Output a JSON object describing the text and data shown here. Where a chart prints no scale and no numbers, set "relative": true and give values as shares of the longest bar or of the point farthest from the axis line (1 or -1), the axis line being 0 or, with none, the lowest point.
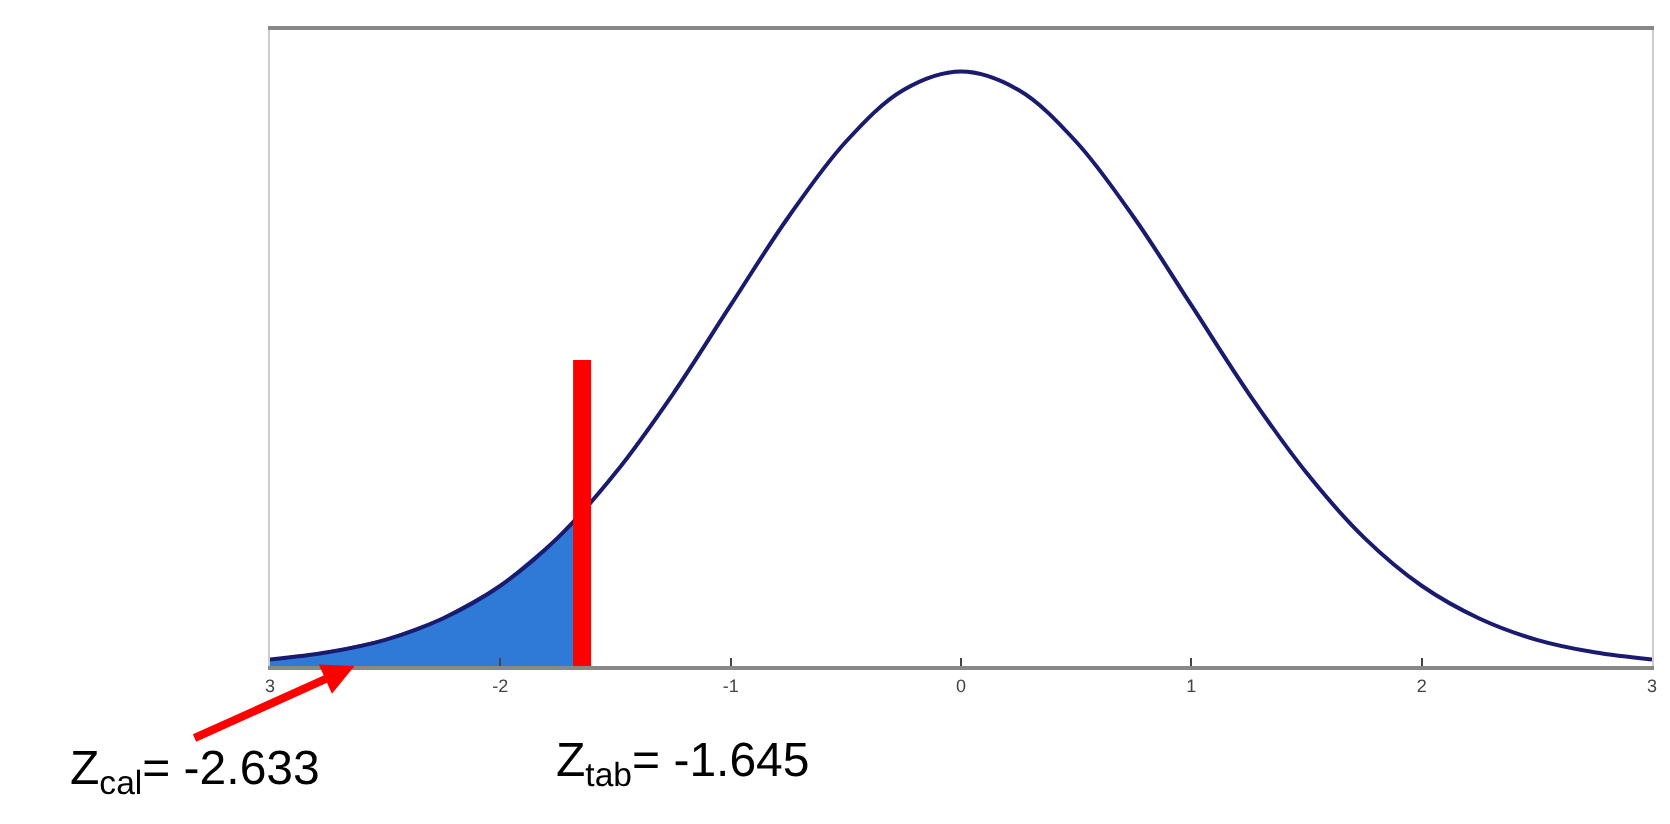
{
  "chart_data": {
    "type": "line",
    "relative": true,
    "marker": "none",
    "xlim": [
      -3,
      3
    ],
    "xticks": [
      {
        "value": -3,
        "label": "3"
      },
      -2,
      -1,
      0,
      1,
      2,
      3
    ],
    "series": [
      {
        "type": "area",
        "color": "#2f7ad6",
        "x": [
          -3,
          -2.75,
          -2.5,
          -2.25,
          -2,
          -1.75,
          -1.645
        ],
        "values": [
          0.011,
          0.023,
          0.044,
          0.08,
          0.135,
          0.216,
          0.258
        ]
      },
      {
        "color": "#1a1a6e",
        "x": [
          -3,
          -2.75,
          -2.5,
          -2.25,
          -2,
          -1.75,
          -1.5,
          -1.25,
          -1,
          -0.75,
          -0.5,
          -0.25,
          0,
          0.25,
          0.5,
          0.75,
          1,
          1.25,
          1.5,
          1.75,
          2,
          2.25,
          2.5,
          2.75,
          3
        ],
        "values": [
          0.011,
          0.023,
          0.044,
          0.08,
          0.135,
          0.216,
          0.325,
          0.458,
          0.607,
          0.755,
          0.882,
          0.969,
          1,
          0.969,
          0.882,
          0.755,
          0.607,
          0.458,
          0.325,
          0.216,
          0.135,
          0.08,
          0.044,
          0.023,
          0.011
        ]
      },
      {
        "color": "#ff0000",
        "x": [
          -1.645,
          -1.645
        ],
        "values": [
          0,
          0.515
        ]
      }
    ],
    "annotations": [
      {
        "text": "Z$_{cal}$= -2.633",
        "x": -2.633,
        "y": 0
      },
      {
        "text": "Z$_{tab}$= -1.645",
        "x": -1.645,
        "y": 0
      }
    ]
  }
}
